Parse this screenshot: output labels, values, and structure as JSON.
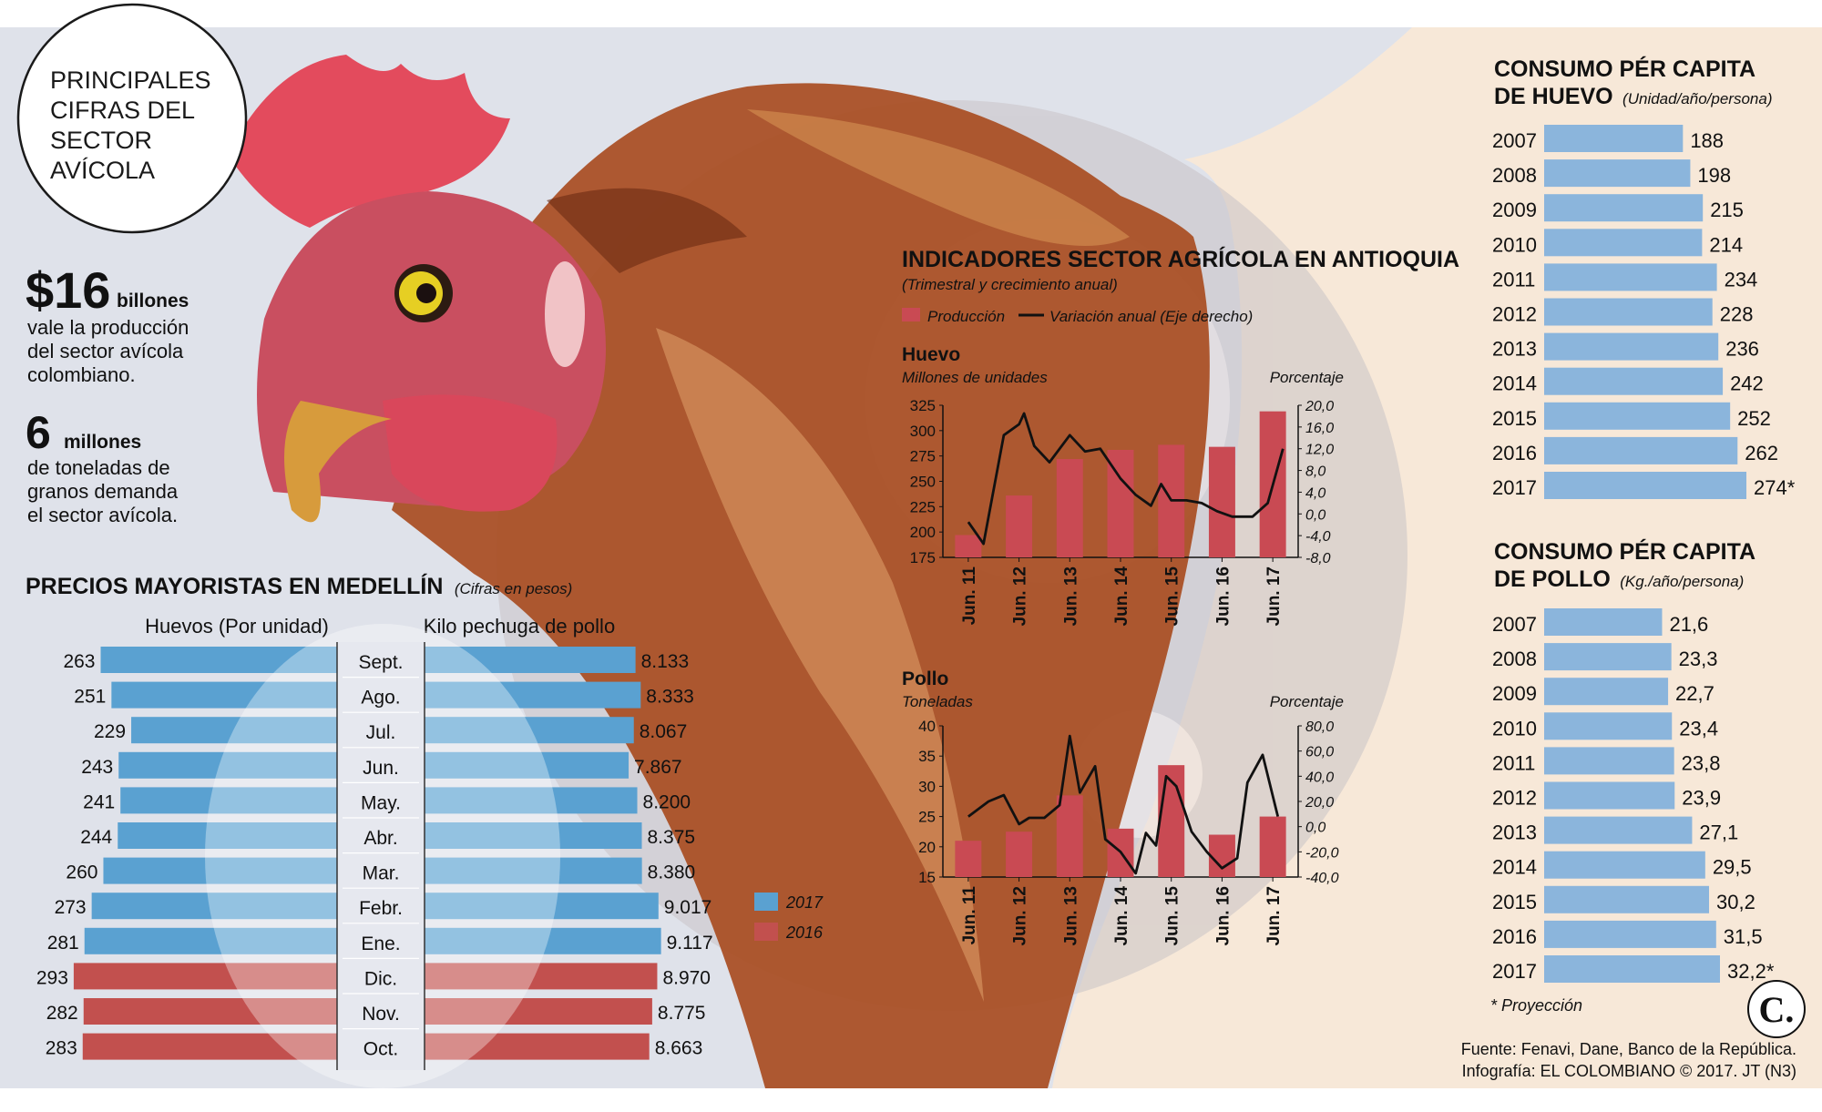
{
  "colors": {
    "left_background": "#dfe2ea",
    "right_background": "#f7e8d8",
    "bar_2017": "#5aa1d1",
    "bar_2016": "#c2504e",
    "consumo_bar": "#8bb5dc",
    "production_bar": "#c94a53",
    "variation_line": "#111111",
    "text": "#111111"
  },
  "title_circle": {
    "lines": [
      "PRINCIPALES",
      "CIFRAS DEL",
      "SECTOR",
      "AVÍCOLA"
    ]
  },
  "stats": [
    {
      "big": "$16",
      "unit": "billones",
      "lines": [
        "vale la producción",
        "del sector avícola",
        "colombiano."
      ]
    },
    {
      "big": "6",
      "unit": "millones",
      "lines": [
        "de toneladas de",
        "granos demanda",
        "el sector avícola."
      ]
    }
  ],
  "precios": {
    "title": "PRECIOS MAYORISTAS EN MEDELLÍN",
    "subtitle": "(Cifras en pesos)",
    "left_header": "Huevos (Por unidad)",
    "right_header": "Kilo pechuga de pollo",
    "legend": [
      {
        "label": "2017",
        "color": "#5aa1d1"
      },
      {
        "label": "2016",
        "color": "#c2504e"
      }
    ]
  },
  "indicadores": {
    "title": "INDICADORES SECTOR AGRÍCOLA EN ANTIOQUIA",
    "subtitle": "(Trimestral y crecimiento anual)",
    "legend_bar": "Producción",
    "legend_line": "Variación anual (Eje derecho)"
  },
  "consumo_huevo": {
    "title_line1": "CONSUMO PÉR CAPITA",
    "title_line2": "DE HUEVO",
    "unit": "(Unidad/año/persona)"
  },
  "consumo_pollo": {
    "title_line1": "CONSUMO PÉR CAPITA",
    "title_line2": "DE POLLO",
    "unit": "(Kg./año/persona)"
  },
  "footnote": "* Proyección",
  "logo_letter": "C.",
  "source_line1": "Fuente: Fenavi, Dane, Banco de la República.",
  "source_line2": "Infografía: EL COLOMBIANO © 2017. JT (N3)",
  "chart_data": [
    {
      "id": "precios",
      "type": "bar",
      "categories": [
        "Sept.",
        "Ago.",
        "Jul.",
        "Jun.",
        "May.",
        "Abr.",
        "Mar.",
        "Febr.",
        "Ene.",
        "Dic.",
        "Nov.",
        "Oct."
      ],
      "years": [
        "2017",
        "2017",
        "2017",
        "2017",
        "2017",
        "2017",
        "2017",
        "2017",
        "2017",
        "2016",
        "2016",
        "2016"
      ],
      "series": [
        {
          "name": "Huevos (Por unidad)",
          "values": [
            263,
            251,
            229,
            243,
            241,
            244,
            260,
            273,
            281,
            293,
            282,
            283
          ],
          "labels": [
            "263",
            "251",
            "229",
            "243",
            "241",
            "244",
            "260",
            "273",
            "281",
            "293",
            "282",
            "283"
          ]
        },
        {
          "name": "Kilo pechuga de pollo",
          "values": [
            8133,
            8333,
            8067,
            7867,
            8200,
            8375,
            8380,
            9017,
            9117,
            8970,
            8775,
            8663
          ],
          "labels": [
            "8.133",
            "8.333",
            "8.067",
            "7.867",
            "8.200",
            "8.375",
            "8.380",
            "9.017",
            "9.117",
            "8.970",
            "8.775",
            "8.663"
          ]
        }
      ]
    },
    {
      "id": "huevo",
      "type": "bar",
      "title": "Huevo",
      "ylabel": "Millones de unidades",
      "y2label": "Porcentaje",
      "categories": [
        "Jun. 11",
        "Jun. 12",
        "Jun. 13",
        "Jun. 14",
        "Jun. 15",
        "Jun. 16",
        "Jun. 17"
      ],
      "ylim": [
        175,
        325
      ],
      "yticks": [
        "325",
        "300",
        "275",
        "250",
        "225",
        "200",
        "175"
      ],
      "y2lim": [
        -8,
        20
      ],
      "y2ticks": [
        "20,0",
        "16,0",
        "12,0",
        "8,0",
        "4,0",
        "0,0",
        "-4,0",
        "-8,0"
      ],
      "series": [
        {
          "name": "Producción",
          "values": [
            197,
            236,
            272,
            281,
            286,
            284,
            319
          ]
        },
        {
          "name": "Variación anual (Eje derecho)",
          "x": [
            0,
            0.3,
            0.7,
            1.0,
            1.1,
            1.3,
            1.6,
            2.0,
            2.3,
            2.6,
            3.0,
            3.3,
            3.6,
            3.8,
            4.0,
            4.3,
            4.6,
            4.9,
            5.2,
            5.6,
            5.9,
            6.2
          ],
          "values": [
            -1.5,
            -5.5,
            14.5,
            16.5,
            18.5,
            12.5,
            9.5,
            14.5,
            11.5,
            12.0,
            6.5,
            3.5,
            1.5,
            5.5,
            2.5,
            2.5,
            2.0,
            0.5,
            -0.5,
            -0.5,
            2.0,
            12.0
          ]
        }
      ]
    },
    {
      "id": "pollo",
      "type": "bar",
      "title": "Pollo",
      "ylabel": "Toneladas",
      "y2label": "Porcentaje",
      "categories": [
        "Jun. 11",
        "Jun. 12",
        "Jun. 13",
        "Jun. 14",
        "Jun. 15",
        "Jun. 16",
        "Jun. 17"
      ],
      "ylim": [
        15,
        40
      ],
      "yticks": [
        "40",
        "35",
        "30",
        "25",
        "20",
        "15"
      ],
      "y2lim": [
        -40,
        80
      ],
      "y2ticks": [
        "80,0",
        "60,0",
        "40,0",
        "20,0",
        "0,0",
        "-20,0",
        "-40,0"
      ],
      "series": [
        {
          "name": "Producción",
          "values": [
            21,
            22.5,
            28.5,
            23,
            33.5,
            22,
            25
          ]
        },
        {
          "name": "Variación anual (Eje derecho)",
          "x": [
            0,
            0.4,
            0.7,
            1.0,
            1.2,
            1.5,
            1.8,
            2.0,
            2.2,
            2.5,
            2.7,
            3.0,
            3.3,
            3.5,
            3.7,
            3.9,
            4.1,
            4.4,
            4.7,
            5.0,
            5.3,
            5.5,
            5.8,
            6.1
          ],
          "values": [
            8,
            20,
            25,
            2,
            7,
            7,
            17,
            72,
            27,
            48,
            -10,
            -20,
            -37,
            -5,
            -15,
            40,
            32,
            -4,
            -20,
            -33,
            -25,
            35,
            57,
            8
          ]
        }
      ]
    },
    {
      "id": "consumo_huevo",
      "type": "bar",
      "categories": [
        "2007",
        "2008",
        "2009",
        "2010",
        "2011",
        "2012",
        "2013",
        "2014",
        "2015",
        "2016",
        "2017"
      ],
      "values": [
        188,
        198,
        215,
        214,
        234,
        228,
        236,
        242,
        252,
        262,
        274
      ],
      "labels": [
        "188",
        "198",
        "215",
        "214",
        "234",
        "228",
        "236",
        "242",
        "252",
        "262",
        "274*"
      ]
    },
    {
      "id": "consumo_pollo",
      "type": "bar",
      "categories": [
        "2007",
        "2008",
        "2009",
        "2010",
        "2011",
        "2012",
        "2013",
        "2014",
        "2015",
        "2016",
        "2017"
      ],
      "values": [
        21.6,
        23.3,
        22.7,
        23.4,
        23.8,
        23.9,
        27.1,
        29.5,
        30.2,
        31.5,
        32.2
      ],
      "labels": [
        "21,6",
        "23,3",
        "22,7",
        "23,4",
        "23,8",
        "23,9",
        "27,1",
        "29,5",
        "30,2",
        "31,5",
        "32,2*"
      ]
    }
  ]
}
